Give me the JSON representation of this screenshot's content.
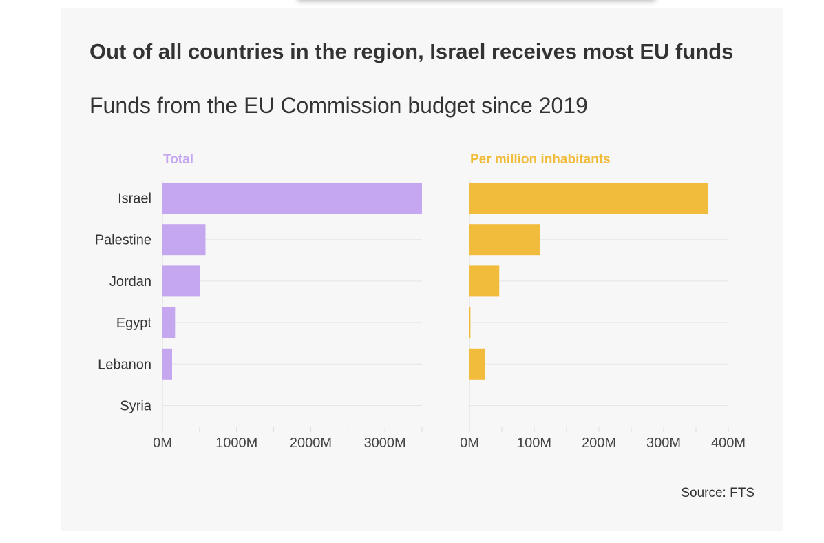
{
  "title": "Out of all countries in the region, Israel receives most EU funds",
  "subtitle": "Funds from the EU Commission budget since 2019",
  "source": {
    "label": "Source: ",
    "link_text": "FTS"
  },
  "chart_data": [
    {
      "type": "bar",
      "orientation": "horizontal",
      "title": "Total",
      "color": "#c5a7f0",
      "categories": [
        "Israel",
        "Palestine",
        "Jordan",
        "Egypt",
        "Lebanon",
        "Syria"
      ],
      "values": [
        3500,
        580,
        510,
        170,
        130,
        0
      ],
      "xlim": [
        0,
        3500
      ],
      "ticks": [
        0,
        1000,
        2000,
        3000
      ],
      "tick_labels": [
        "0M",
        "1000M",
        "2000M",
        "3000M"
      ],
      "grid": true
    },
    {
      "type": "bar",
      "orientation": "horizontal",
      "title": "Per million inhabitants",
      "color": "#f1bc3b",
      "categories": [
        "Israel",
        "Palestine",
        "Jordan",
        "Egypt",
        "Lebanon",
        "Syria"
      ],
      "values": [
        369,
        109,
        46,
        1.5,
        24,
        0
      ],
      "xlim": [
        0,
        400
      ],
      "ticks": [
        0,
        100,
        200,
        300,
        400
      ],
      "tick_labels": [
        "0M",
        "100M",
        "200M",
        "300M",
        "400M"
      ],
      "grid": true
    }
  ]
}
